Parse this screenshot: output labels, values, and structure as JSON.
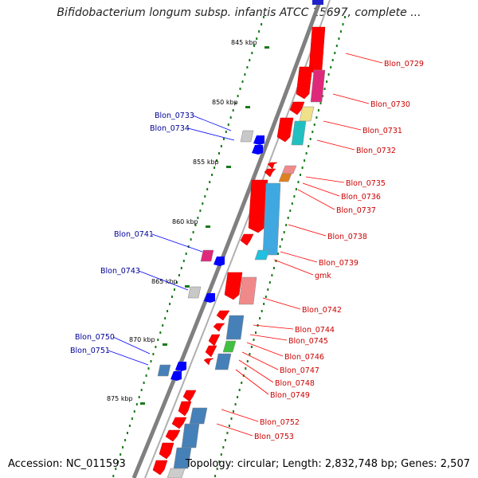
{
  "title": "Bifidobacterium longum subsp. infantis ATCC 15697, complete ...",
  "footer": {
    "accession": "Accession: NC_011593",
    "summary": "Topology: circular; Length: 2,832,748 bp; Genes: 2,507"
  },
  "colors": {
    "backbone": "#808080",
    "scale_ticks": "#1a7a1a",
    "left_labels": "#000099",
    "right_labels": "#cc0000",
    "forward_gene": "#ff0000",
    "reverse_gene": "#0000ff",
    "label_line_left": "#0000ff",
    "label_line_right": "#ff0000"
  },
  "scale_labels": [
    "845 kbp",
    "850 kbp",
    "855 kbp",
    "860 kbp",
    "865 kbp",
    "870 kbp",
    "875 kbp"
  ],
  "left_gene_labels": [
    "Blon_0733",
    "Blon_0734",
    "Blon_0741",
    "Blon_0743",
    "Blon_0750",
    "Blon_0751"
  ],
  "right_gene_labels": [
    "Blon_0729",
    "Blon_0730",
    "Blon_0731",
    "Blon_0732",
    "Blon_0735",
    "Blon_0736",
    "Blon_0737",
    "Blon_0738",
    "Blon_0739",
    "gmk",
    "Blon_0742",
    "Blon_0744",
    "Blon_0745",
    "Blon_0746",
    "Blon_0747",
    "Blon_0748",
    "Blon_0749",
    "Blon_0752",
    "Blon_0753"
  ]
}
